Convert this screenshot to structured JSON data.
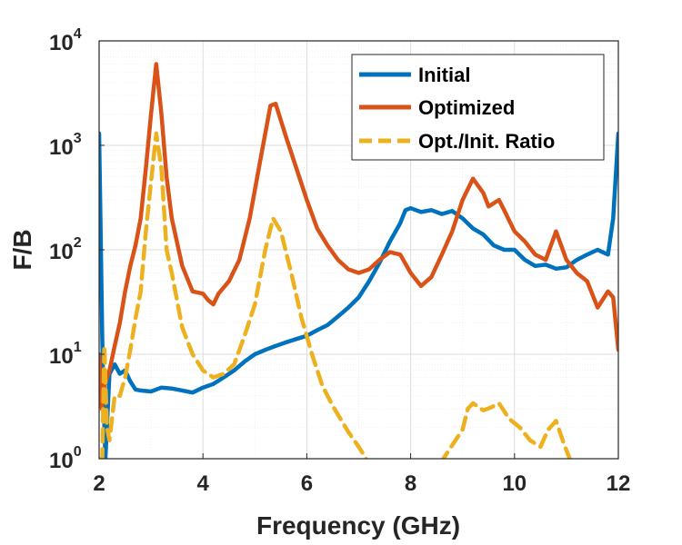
{
  "chart_data": {
    "type": "line",
    "xlabel": "Frequency (GHz)",
    "ylabel": "F/B",
    "xlim": [
      2,
      12
    ],
    "ylim": [
      1,
      10000
    ],
    "yscale": "log",
    "grid": true,
    "legend_position": "top-right",
    "x_ticks": [
      {
        "value": 2,
        "label": "2"
      },
      {
        "value": 4,
        "label": "4"
      },
      {
        "value": 6,
        "label": "6"
      },
      {
        "value": 8,
        "label": "8"
      },
      {
        "value": 10,
        "label": "10"
      },
      {
        "value": 12,
        "label": "12"
      }
    ],
    "y_ticks": [
      {
        "value": 1,
        "base": "10",
        "exp": "0"
      },
      {
        "value": 10,
        "base": "10",
        "exp": "1"
      },
      {
        "value": 100,
        "base": "10",
        "exp": "2"
      },
      {
        "value": 1000,
        "base": "10",
        "exp": "3"
      },
      {
        "value": 10000,
        "base": "10",
        "exp": "4"
      }
    ],
    "series": [
      {
        "name": "Initial",
        "color": "#0072BD",
        "style": "solid",
        "points": [
          [
            2.0,
            1300
          ],
          [
            2.03,
            150
          ],
          [
            2.06,
            15
          ],
          [
            2.09,
            3
          ],
          [
            2.12,
            1
          ],
          [
            2.16,
            2.5
          ],
          [
            2.2,
            6.5
          ],
          [
            2.3,
            8
          ],
          [
            2.4,
            6.5
          ],
          [
            2.5,
            7
          ],
          [
            2.6,
            5.5
          ],
          [
            2.7,
            4.6
          ],
          [
            2.8,
            4.5
          ],
          [
            3.0,
            4.4
          ],
          [
            3.2,
            4.8
          ],
          [
            3.4,
            4.7
          ],
          [
            3.6,
            4.5
          ],
          [
            3.8,
            4.3
          ],
          [
            4.0,
            4.8
          ],
          [
            4.2,
            5.2
          ],
          [
            4.4,
            6
          ],
          [
            4.6,
            7
          ],
          [
            4.8,
            8.5
          ],
          [
            5.0,
            10
          ],
          [
            5.2,
            11
          ],
          [
            5.4,
            12
          ],
          [
            5.6,
            13
          ],
          [
            5.8,
            14
          ],
          [
            6.0,
            15
          ],
          [
            6.2,
            17
          ],
          [
            6.4,
            19
          ],
          [
            6.6,
            23
          ],
          [
            6.8,
            28
          ],
          [
            7.0,
            35
          ],
          [
            7.2,
            50
          ],
          [
            7.4,
            75
          ],
          [
            7.6,
            120
          ],
          [
            7.8,
            180
          ],
          [
            7.9,
            240
          ],
          [
            8.0,
            250
          ],
          [
            8.2,
            230
          ],
          [
            8.4,
            240
          ],
          [
            8.6,
            220
          ],
          [
            8.8,
            235
          ],
          [
            9.0,
            200
          ],
          [
            9.2,
            160
          ],
          [
            9.4,
            140
          ],
          [
            9.6,
            110
          ],
          [
            9.8,
            100
          ],
          [
            10.0,
            100
          ],
          [
            10.2,
            80
          ],
          [
            10.4,
            70
          ],
          [
            10.6,
            72
          ],
          [
            10.8,
            66
          ],
          [
            11.0,
            68
          ],
          [
            11.2,
            80
          ],
          [
            11.4,
            90
          ],
          [
            11.6,
            100
          ],
          [
            11.8,
            90
          ],
          [
            11.9,
            200
          ],
          [
            12.0,
            1300
          ]
        ]
      },
      {
        "name": "Optimized",
        "color": "#D95319",
        "style": "solid",
        "points": [
          [
            2.0,
            10
          ],
          [
            2.05,
            3
          ],
          [
            2.1,
            5
          ],
          [
            2.2,
            7
          ],
          [
            2.3,
            12
          ],
          [
            2.4,
            20
          ],
          [
            2.5,
            40
          ],
          [
            2.6,
            70
          ],
          [
            2.7,
            110
          ],
          [
            2.8,
            200
          ],
          [
            2.9,
            600
          ],
          [
            3.0,
            2000
          ],
          [
            3.1,
            6000
          ],
          [
            3.2,
            2000
          ],
          [
            3.3,
            500
          ],
          [
            3.4,
            200
          ],
          [
            3.6,
            70
          ],
          [
            3.8,
            40
          ],
          [
            4.0,
            38
          ],
          [
            4.1,
            33
          ],
          [
            4.2,
            30
          ],
          [
            4.3,
            38
          ],
          [
            4.5,
            50
          ],
          [
            4.7,
            80
          ],
          [
            4.9,
            200
          ],
          [
            5.1,
            700
          ],
          [
            5.3,
            2400
          ],
          [
            5.4,
            2500
          ],
          [
            5.6,
            1200
          ],
          [
            5.8,
            600
          ],
          [
            6.0,
            300
          ],
          [
            6.2,
            160
          ],
          [
            6.4,
            110
          ],
          [
            6.6,
            80
          ],
          [
            6.8,
            65
          ],
          [
            7.0,
            60
          ],
          [
            7.2,
            65
          ],
          [
            7.4,
            80
          ],
          [
            7.6,
            95
          ],
          [
            7.8,
            90
          ],
          [
            8.0,
            60
          ],
          [
            8.2,
            45
          ],
          [
            8.4,
            55
          ],
          [
            8.6,
            90
          ],
          [
            8.8,
            150
          ],
          [
            9.0,
            300
          ],
          [
            9.2,
            480
          ],
          [
            9.4,
            350
          ],
          [
            9.5,
            260
          ],
          [
            9.7,
            300
          ],
          [
            9.8,
            240
          ],
          [
            10.0,
            150
          ],
          [
            10.2,
            120
          ],
          [
            10.4,
            90
          ],
          [
            10.6,
            80
          ],
          [
            10.8,
            150
          ],
          [
            11.0,
            80
          ],
          [
            11.2,
            60
          ],
          [
            11.4,
            50
          ],
          [
            11.6,
            28
          ],
          [
            11.8,
            40
          ],
          [
            11.9,
            35
          ],
          [
            12.0,
            11
          ]
        ]
      },
      {
        "name": "Opt./Init. Ratio",
        "color": "#EDB120",
        "style": "dashed",
        "points": [
          [
            2.0,
            1
          ],
          [
            2.05,
            0.5
          ],
          [
            2.1,
            12
          ],
          [
            2.15,
            2
          ],
          [
            2.2,
            1.5
          ],
          [
            2.3,
            4
          ],
          [
            2.4,
            4
          ],
          [
            2.5,
            6
          ],
          [
            2.6,
            11
          ],
          [
            2.7,
            22
          ],
          [
            2.8,
            40
          ],
          [
            2.9,
            150
          ],
          [
            3.0,
            450
          ],
          [
            3.1,
            1300
          ],
          [
            3.2,
            600
          ],
          [
            3.3,
            100
          ],
          [
            3.4,
            60
          ],
          [
            3.6,
            18
          ],
          [
            3.8,
            10
          ],
          [
            4.0,
            7
          ],
          [
            4.2,
            6
          ],
          [
            4.4,
            6.5
          ],
          [
            4.6,
            8
          ],
          [
            4.8,
            15
          ],
          [
            5.0,
            30
          ],
          [
            5.2,
            100
          ],
          [
            5.35,
            200
          ],
          [
            5.5,
            150
          ],
          [
            5.7,
            60
          ],
          [
            5.9,
            22
          ],
          [
            6.1,
            10
          ],
          [
            6.3,
            5
          ],
          [
            6.5,
            3.2
          ],
          [
            6.8,
            1.8
          ],
          [
            7.0,
            1.3
          ],
          [
            7.2,
            0.9
          ],
          [
            8.5,
            0.8
          ],
          [
            9.0,
            1.9
          ],
          [
            9.1,
            3
          ],
          [
            9.2,
            3.4
          ],
          [
            9.4,
            2.9
          ],
          [
            9.55,
            3.1
          ],
          [
            9.7,
            3.4
          ],
          [
            9.9,
            2.4
          ],
          [
            10.1,
            2.0
          ],
          [
            10.3,
            1.5
          ],
          [
            10.5,
            1.3
          ],
          [
            10.65,
            1.9
          ],
          [
            10.8,
            2.3
          ],
          [
            10.95,
            1.4
          ],
          [
            11.1,
            0.9
          ]
        ]
      }
    ]
  }
}
